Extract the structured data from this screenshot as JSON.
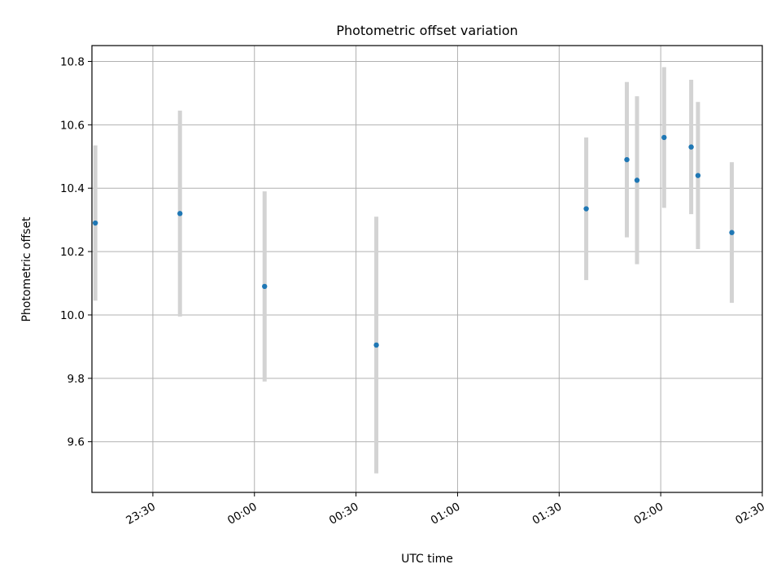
{
  "chart_data": {
    "type": "scatter",
    "title": "Photometric offset variation",
    "xlabel": "UTC time",
    "ylabel": "Photometric offset",
    "xticks": [
      "23:30",
      "00:00",
      "00:30",
      "01:00",
      "01:30",
      "02:00",
      "02:30"
    ],
    "yticks": [
      "9.6",
      "9.8",
      "10.0",
      "10.2",
      "10.4",
      "10.6",
      "10.8"
    ],
    "xlim": [
      "23:12",
      "02:30"
    ],
    "ylim": [
      9.44,
      10.85
    ],
    "grid": true,
    "colors": {
      "point": "#1f77b4",
      "errorbar": "#d3d3d3",
      "grid": "#b0b0b0"
    },
    "points": [
      {
        "time": "23:13",
        "y": 10.29,
        "yerr": 0.245
      },
      {
        "time": "23:38",
        "y": 10.32,
        "yerr": 0.325
      },
      {
        "time": "00:03",
        "y": 10.09,
        "yerr": 0.3
      },
      {
        "time": "00:36",
        "y": 9.905,
        "yerr": 0.405
      },
      {
        "time": "01:38",
        "y": 10.335,
        "yerr": 0.225
      },
      {
        "time": "01:50",
        "y": 10.49,
        "yerr": 0.245
      },
      {
        "time": "01:53",
        "y": 10.425,
        "yerr": 0.265
      },
      {
        "time": "02:01",
        "y": 10.56,
        "yerr": 0.222
      },
      {
        "time": "02:09",
        "y": 10.53,
        "yerr": 0.212
      },
      {
        "time": "02:11",
        "y": 10.44,
        "yerr": 0.232
      },
      {
        "time": "02:21",
        "y": 10.26,
        "yerr": 0.222
      }
    ]
  }
}
